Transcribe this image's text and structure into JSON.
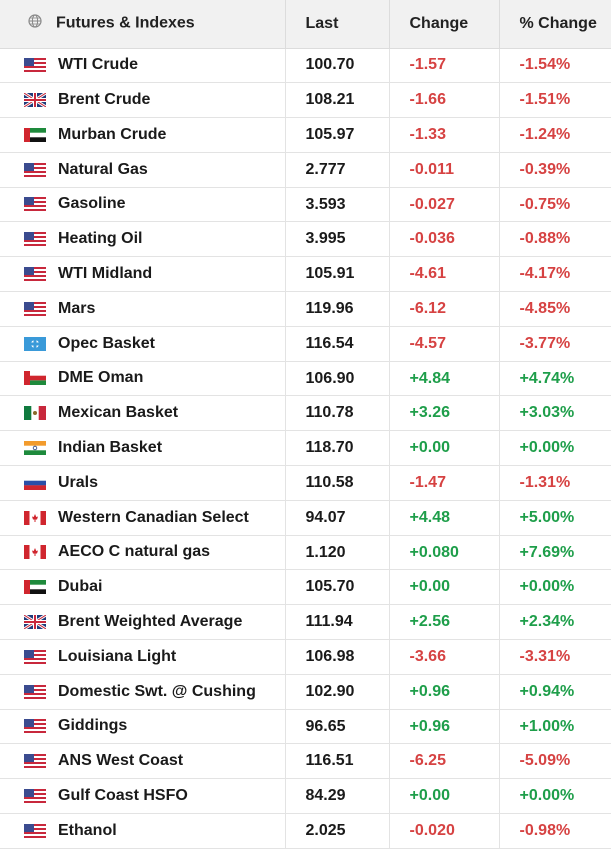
{
  "header": {
    "name": "Futures & Indexes",
    "last": "Last",
    "change": "Change",
    "pct_change": "% Change",
    "icon": "globe-icon"
  },
  "colors": {
    "negative": "#d64242",
    "positive": "#1e9e4a"
  },
  "rows": [
    {
      "flag": "us",
      "name": "WTI Crude",
      "last": "100.70",
      "change": "-1.57",
      "pct": "-1.54%",
      "dir": "neg"
    },
    {
      "flag": "uk",
      "name": "Brent Crude",
      "last": "108.21",
      "change": "-1.66",
      "pct": "-1.51%",
      "dir": "neg"
    },
    {
      "flag": "ae",
      "name": "Murban Crude",
      "last": "105.97",
      "change": "-1.33",
      "pct": "-1.24%",
      "dir": "neg"
    },
    {
      "flag": "us",
      "name": "Natural Gas",
      "last": "2.777",
      "change": "-0.011",
      "pct": "-0.39%",
      "dir": "neg"
    },
    {
      "flag": "us",
      "name": "Gasoline",
      "last": "3.593",
      "change": "-0.027",
      "pct": "-0.75%",
      "dir": "neg"
    },
    {
      "flag": "us",
      "name": "Heating Oil",
      "last": "3.995",
      "change": "-0.036",
      "pct": "-0.88%",
      "dir": "neg"
    },
    {
      "flag": "us",
      "name": "WTI Midland",
      "last": "105.91",
      "change": "-4.61",
      "pct": "-4.17%",
      "dir": "neg"
    },
    {
      "flag": "us",
      "name": "Mars",
      "last": "119.96",
      "change": "-6.12",
      "pct": "-4.85%",
      "dir": "neg"
    },
    {
      "flag": "opec",
      "name": "Opec Basket",
      "last": "116.54",
      "change": "-4.57",
      "pct": "-3.77%",
      "dir": "neg"
    },
    {
      "flag": "om",
      "name": "DME Oman",
      "last": "106.90",
      "change": "+4.84",
      "pct": "+4.74%",
      "dir": "pos"
    },
    {
      "flag": "mx",
      "name": "Mexican Basket",
      "last": "110.78",
      "change": "+3.26",
      "pct": "+3.03%",
      "dir": "pos"
    },
    {
      "flag": "in",
      "name": "Indian Basket",
      "last": "118.70",
      "change": "+0.00",
      "pct": "+0.00%",
      "dir": "pos"
    },
    {
      "flag": "ru",
      "name": "Urals",
      "last": "110.58",
      "change": "-1.47",
      "pct": "-1.31%",
      "dir": "neg"
    },
    {
      "flag": "ca",
      "name": "Western Canadian Select",
      "last": "94.07",
      "change": "+4.48",
      "pct": "+5.00%",
      "dir": "pos"
    },
    {
      "flag": "ca",
      "name": "AECO C natural gas",
      "last": "1.120",
      "change": "+0.080",
      "pct": "+7.69%",
      "dir": "pos"
    },
    {
      "flag": "ae",
      "name": "Dubai",
      "last": "105.70",
      "change": "+0.00",
      "pct": "+0.00%",
      "dir": "pos"
    },
    {
      "flag": "uk",
      "name": "Brent Weighted Average",
      "last": "111.94",
      "change": "+2.56",
      "pct": "+2.34%",
      "dir": "pos"
    },
    {
      "flag": "us",
      "name": "Louisiana Light",
      "last": "106.98",
      "change": "-3.66",
      "pct": "-3.31%",
      "dir": "neg"
    },
    {
      "flag": "us",
      "name": "Domestic Swt. @ Cushing",
      "last": "102.90",
      "change": "+0.96",
      "pct": "+0.94%",
      "dir": "pos"
    },
    {
      "flag": "us",
      "name": "Giddings",
      "last": "96.65",
      "change": "+0.96",
      "pct": "+1.00%",
      "dir": "pos"
    },
    {
      "flag": "us",
      "name": "ANS West Coast",
      "last": "116.51",
      "change": "-6.25",
      "pct": "-5.09%",
      "dir": "neg"
    },
    {
      "flag": "us",
      "name": "Gulf Coast HSFO",
      "last": "84.29",
      "change": "+0.00",
      "pct": "+0.00%",
      "dir": "pos"
    },
    {
      "flag": "us",
      "name": "Ethanol",
      "last": "2.025",
      "change": "-0.020",
      "pct": "-0.98%",
      "dir": "neg"
    }
  ]
}
